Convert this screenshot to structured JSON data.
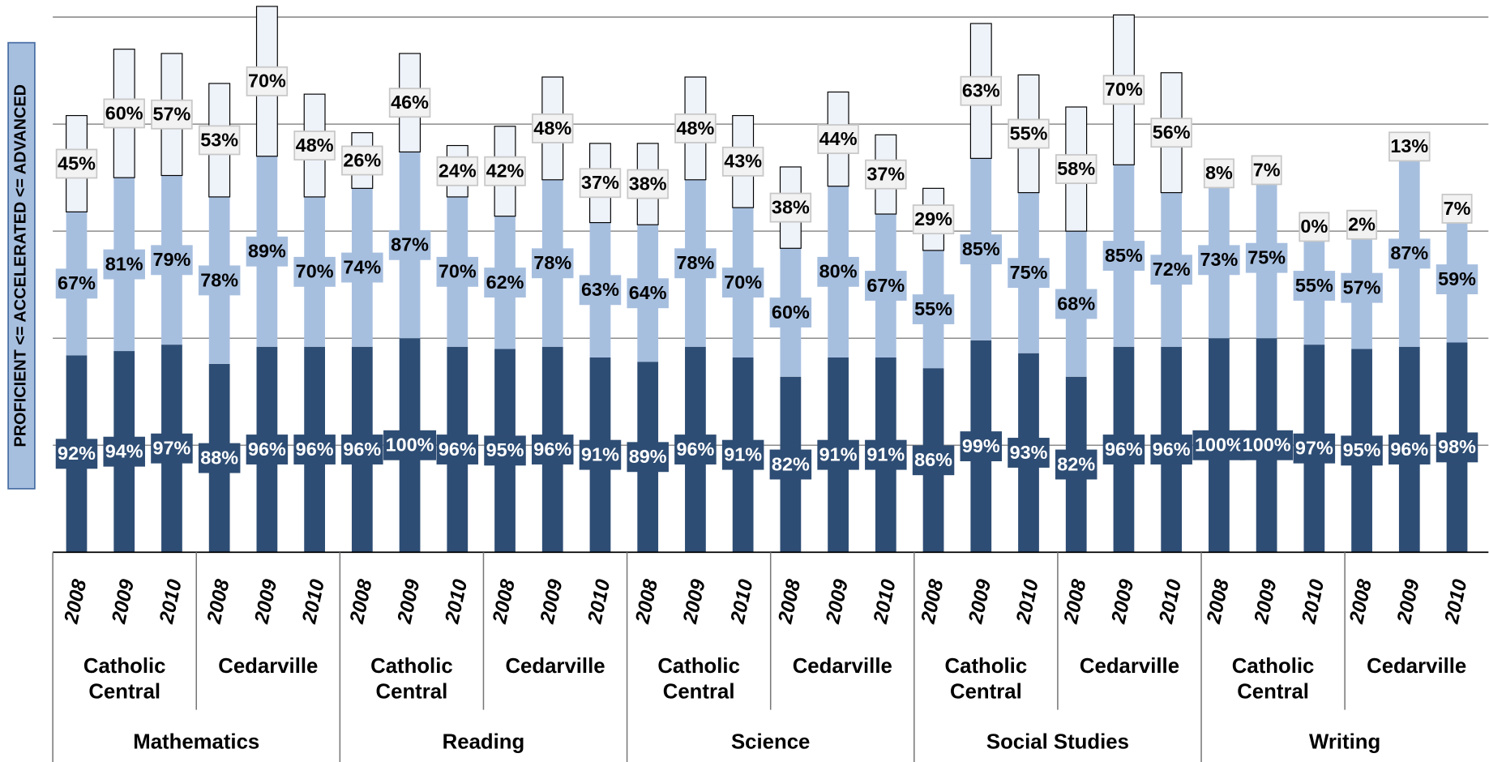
{
  "chart_data": {
    "type": "stacked-bar",
    "y_label": "PROFICIENT <= ACCELERATED <= ADVANCED",
    "categories": [
      "2008",
      "2009",
      "2010",
      "2008",
      "2009",
      "2010",
      "2008",
      "2009",
      "2010",
      "2008",
      "2009",
      "2010",
      "2008",
      "2009",
      "2010",
      "2008",
      "2009",
      "2010",
      "2008",
      "2009",
      "2010",
      "2008",
      "2009",
      "2010",
      "2008",
      "2009",
      "2010",
      "2008",
      "2009",
      "2010"
    ],
    "schools": [
      "Catholic Central",
      "Cedarville",
      "Catholic Central",
      "Cedarville",
      "Catholic Central",
      "Cedarville",
      "Catholic Central",
      "Cedarville",
      "Catholic Central",
      "Cedarville"
    ],
    "subjects": [
      "Mathematics",
      "Reading",
      "Science",
      "Social Studies",
      "Writing"
    ],
    "series": [
      {
        "color": "#2e4d74",
        "values": [
          92,
          94,
          97,
          88,
          96,
          96,
          96,
          100,
          96,
          95,
          96,
          91,
          89,
          96,
          91,
          82,
          91,
          91,
          86,
          99,
          93,
          82,
          96,
          96,
          100,
          100,
          97,
          95,
          96,
          98
        ],
        "value_labels": [
          "92%",
          "94%",
          "97%",
          "88%",
          "96%",
          "96%",
          "96%",
          "100%",
          "96%",
          "95%",
          "96%",
          "91%",
          "89%",
          "96%",
          "91%",
          "82%",
          "91%",
          "91%",
          "86%",
          "99%",
          "93%",
          "82%",
          "96%",
          "96%",
          "100%",
          "100%",
          "97%",
          "95%",
          "96%",
          "98%"
        ]
      },
      {
        "color": "#a7bfdf",
        "values": [
          67,
          81,
          79,
          78,
          89,
          70,
          74,
          87,
          70,
          62,
          78,
          63,
          64,
          78,
          70,
          60,
          80,
          67,
          55,
          85,
          75,
          68,
          85,
          72,
          73,
          75,
          55,
          57,
          87,
          59
        ],
        "value_labels": [
          "67%",
          "81%",
          "79%",
          "78%",
          "89%",
          "70%",
          "74%",
          "87%",
          "70%",
          "62%",
          "78%",
          "63%",
          "64%",
          "78%",
          "70%",
          "60%",
          "80%",
          "67%",
          "55%",
          "85%",
          "75%",
          "68%",
          "85%",
          "72%",
          "73%",
          "75%",
          "55%",
          "57%",
          "87%",
          "59%"
        ]
      },
      {
        "color": "#eef2f9",
        "values": [
          45,
          60,
          57,
          53,
          70,
          48,
          26,
          46,
          24,
          42,
          48,
          37,
          38,
          48,
          43,
          38,
          44,
          37,
          29,
          63,
          55,
          58,
          70,
          56,
          8,
          7,
          0,
          2,
          13,
          7
        ],
        "value_labels": [
          "45%",
          "60%",
          "57%",
          "53%",
          "70%",
          "48%",
          "26%",
          "46%",
          "24%",
          "42%",
          "48%",
          "37%",
          "38%",
          "48%",
          "43%",
          "38%",
          "44%",
          "37%",
          "29%",
          "63%",
          "55%",
          "58%",
          "70%",
          "56%",
          "8%",
          "7%",
          "0%",
          "2%",
          "13%",
          "7%"
        ]
      }
    ],
    "ylim": [
      0,
      250
    ],
    "yticks": [
      0,
      50,
      100,
      150,
      200,
      250
    ],
    "grid": true
  }
}
